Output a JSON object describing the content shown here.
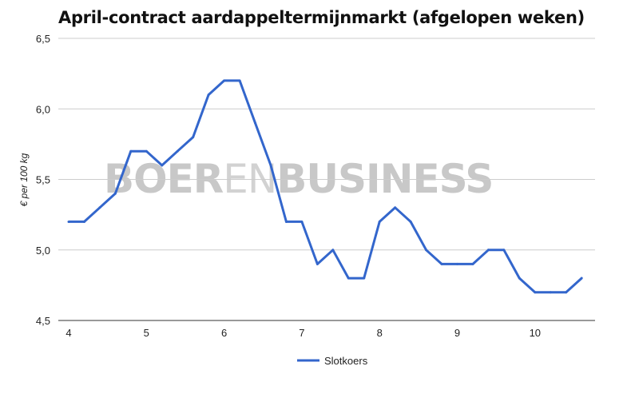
{
  "title": "April-contract aardappeltermijnmarkt (afgelopen weken)",
  "watermark": {
    "bold1": "BOER",
    "light": "EN",
    "bold2": "BUSINESS"
  },
  "chart_data": {
    "type": "line",
    "title": "April-contract aardappeltermijnmarkt (afgelopen weken)",
    "ylabel": "€ per 100 kg",
    "xlabel": "",
    "xlim": [
      4,
      10.6
    ],
    "ylim": [
      4.5,
      6.5
    ],
    "x_ticks": [
      "4",
      "5",
      "6",
      "7",
      "8",
      "9",
      "10"
    ],
    "y_ticks": [
      "4,5",
      "5,0",
      "5,5",
      "6,0",
      "6,5"
    ],
    "grid": true,
    "legend": "bottom-center",
    "series": [
      {
        "name": "Slotkoers",
        "color": "#3366cc",
        "x": [
          4.0,
          4.2,
          4.4,
          4.6,
          4.8,
          5.0,
          5.2,
          5.4,
          5.6,
          5.8,
          6.0,
          6.2,
          6.4,
          6.6,
          6.8,
          7.0,
          7.2,
          7.4,
          7.6,
          7.8,
          8.0,
          8.2,
          8.4,
          8.6,
          8.8,
          9.0,
          9.2,
          9.4,
          9.6,
          9.8,
          10.0,
          10.2,
          10.4,
          10.6
        ],
        "values": [
          5.2,
          5.2,
          5.3,
          5.4,
          5.7,
          5.7,
          5.6,
          5.7,
          5.8,
          6.1,
          6.2,
          6.2,
          5.9,
          5.6,
          5.2,
          5.2,
          4.9,
          5.0,
          4.8,
          4.8,
          5.2,
          5.3,
          5.2,
          5.0,
          4.9,
          4.9,
          4.9,
          5.0,
          5.0,
          4.8,
          4.7,
          4.7,
          4.7,
          4.8
        ]
      }
    ]
  }
}
